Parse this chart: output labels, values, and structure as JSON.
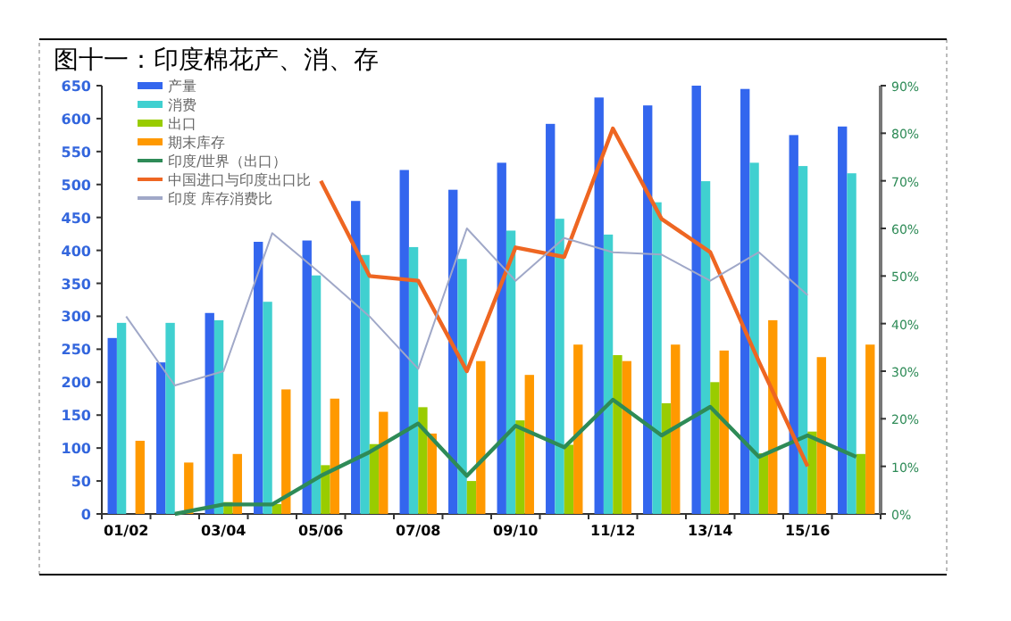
{
  "chart_data": {
    "type": "bar",
    "title": "图十一：印度棉花产、消、存",
    "categories": [
      "01/02",
      null,
      "03/04",
      null,
      "05/06",
      null,
      "07/08",
      null,
      "09/10",
      null,
      "11/12",
      null,
      "13/14",
      null,
      "15/16",
      null
    ],
    "series": [
      {
        "name": "产量",
        "color": "#3366ee",
        "values": [
          267,
          230,
          305,
          413,
          415,
          475,
          522,
          492,
          533,
          592,
          632,
          620,
          650,
          645,
          575,
          588
        ]
      },
      {
        "name": "消费",
        "color": "#40d0d0",
        "values": [
          290,
          290,
          294,
          322,
          362,
          393,
          405,
          387,
          430,
          448,
          424,
          473,
          505,
          533,
          528,
          517
        ]
      },
      {
        "name": "出口",
        "color": "#99cc00",
        "values": [
          null,
          null,
          18,
          15,
          74,
          106,
          162,
          50,
          142,
          105,
          241,
          168,
          200,
          92,
          125,
          91
        ]
      },
      {
        "name": "期末库存",
        "color": "#ff9900",
        "values": [
          111,
          78,
          91,
          189,
          175,
          155,
          122,
          232,
          211,
          257,
          232,
          257,
          248,
          294,
          238,
          257
        ]
      },
      {
        "name": "印度/世界（出口）",
        "type": "line",
        "axis": "y2",
        "color": "#2e8b57",
        "values": [
          null,
          0,
          2,
          2,
          8,
          13,
          19,
          8,
          18.5,
          14,
          24,
          16.5,
          22.5,
          12,
          16.5,
          12
        ]
      },
      {
        "name": "中国进口与印度出口比",
        "type": "line",
        "axis": "y2",
        "color": "#ee6622",
        "values": [
          null,
          null,
          null,
          null,
          70,
          50,
          49,
          30,
          56,
          54,
          81,
          62,
          55,
          32,
          10,
          null
        ]
      },
      {
        "name": "印度 库存消费比",
        "type": "line",
        "axis": "y2",
        "color": "#a0a8c8",
        "values": [
          41.5,
          27,
          30,
          59,
          50.5,
          41.5,
          30.5,
          60,
          49,
          58,
          55,
          54.5,
          49,
          55,
          46,
          null
        ]
      }
    ],
    "ylim": [
      0,
      650
    ],
    "yticks": [
      0,
      50,
      100,
      150,
      200,
      250,
      300,
      350,
      400,
      450,
      500,
      550,
      600,
      650
    ],
    "y2lim": [
      0,
      90
    ],
    "y2ticks": [
      {
        "value": 0,
        "label": "0%"
      },
      {
        "value": 10,
        "label": "10%"
      },
      {
        "value": 20,
        "label": "20%"
      },
      {
        "value": 30,
        "label": "30%"
      },
      {
        "value": 40,
        "label": "40%"
      },
      {
        "value": 50,
        "label": "50%"
      },
      {
        "value": 60,
        "label": "60%"
      },
      {
        "value": 70,
        "label": "70%"
      },
      {
        "value": 80,
        "label": "80%"
      },
      {
        "value": 90,
        "label": "90%"
      }
    ],
    "legend": "top left",
    "grid": false
  }
}
